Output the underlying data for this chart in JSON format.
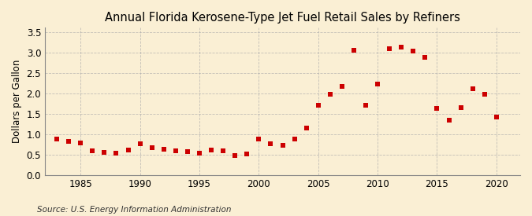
{
  "title": "Annual Florida Kerosene-Type Jet Fuel Retail Sales by Refiners",
  "ylabel": "Dollars per Gallon",
  "source": "Source: U.S. Energy Information Administration",
  "years": [
    1983,
    1984,
    1985,
    1986,
    1987,
    1988,
    1989,
    1990,
    1991,
    1992,
    1993,
    1994,
    1995,
    1996,
    1997,
    1998,
    1999,
    2000,
    2001,
    2002,
    2003,
    2004,
    2005,
    2006,
    2007,
    2008,
    2009,
    2010,
    2011,
    2012,
    2013,
    2014,
    2015,
    2016,
    2017,
    2018,
    2019,
    2020
  ],
  "values": [
    0.88,
    0.83,
    0.79,
    0.59,
    0.56,
    0.54,
    0.62,
    0.76,
    0.67,
    0.63,
    0.6,
    0.57,
    0.53,
    0.62,
    0.6,
    0.47,
    0.51,
    0.88,
    0.76,
    0.72,
    0.88,
    1.15,
    1.7,
    1.97,
    2.17,
    3.05,
    1.7,
    2.22,
    3.08,
    3.12,
    3.03,
    2.88,
    1.63,
    1.35,
    1.65,
    2.1,
    1.97,
    1.42
  ],
  "marker_color": "#cc0000",
  "marker_size": 18,
  "bg_color": "#faefd4",
  "grid_color": "#aaaaaa",
  "xlim": [
    1982,
    2022
  ],
  "ylim": [
    0.0,
    3.6
  ],
  "yticks": [
    0.0,
    0.5,
    1.0,
    1.5,
    2.0,
    2.5,
    3.0,
    3.5
  ],
  "xticks": [
    1985,
    1990,
    1995,
    2000,
    2005,
    2010,
    2015,
    2020
  ],
  "title_fontsize": 10.5,
  "label_fontsize": 8.5,
  "tick_fontsize": 8.5,
  "source_fontsize": 7.5
}
